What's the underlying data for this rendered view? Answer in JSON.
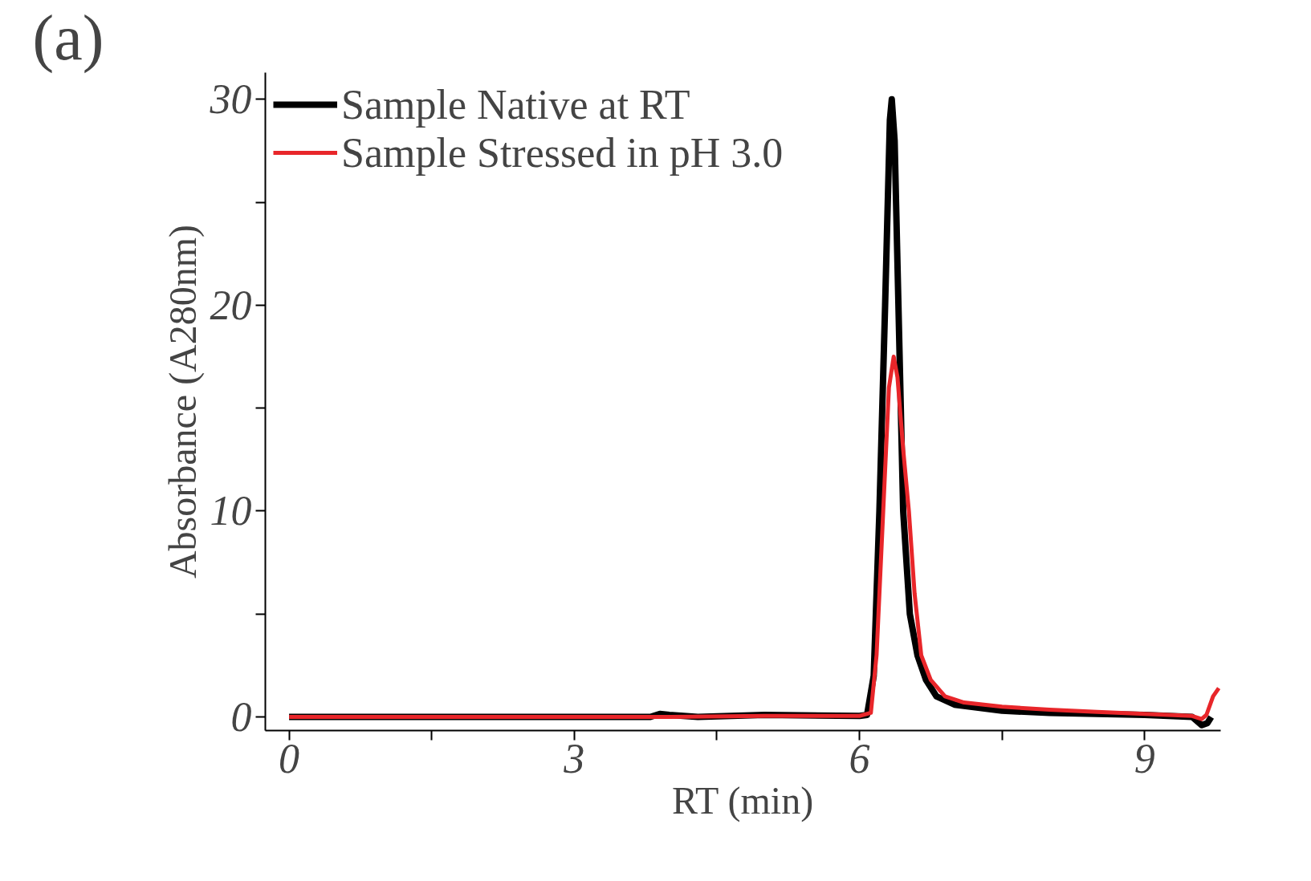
{
  "chart_data": {
    "type": "line",
    "xlabel": "RT (min)",
    "ylabel": "Absorbance (A280nm)",
    "annotations": [
      "(a)"
    ],
    "xlim": [
      -0.25,
      9.8
    ],
    "ylim": [
      -0.66,
      31.3
    ],
    "xticks": [
      0,
      {
        "value": 1.5,
        "label": null
      },
      3,
      {
        "value": 4.5,
        "label": null
      },
      6,
      {
        "value": 7.5,
        "label": null
      },
      9
    ],
    "yticks": [
      0,
      {
        "value": 5,
        "label": null
      },
      10,
      {
        "value": 15,
        "label": null
      },
      20,
      {
        "value": 25,
        "label": null
      },
      30
    ],
    "legend": "top left",
    "grid": false,
    "series": [
      {
        "name": "Sample Native at RT",
        "color": "#000000",
        "x": [
          0.0,
          1,
          2,
          3,
          3.8,
          3.9,
          4.0,
          4.3,
          5,
          6.0,
          6.08,
          6.15,
          6.21,
          6.27,
          6.32,
          6.34,
          6.37,
          6.41,
          6.46,
          6.53,
          6.61,
          6.7,
          6.81,
          7.0,
          7.5,
          8.0,
          8.5,
          9.0,
          9.5,
          9.6,
          9.66,
          9.7
        ],
        "values": [
          0,
          0,
          0,
          0,
          0,
          0.15,
          0.1,
          0,
          0.1,
          0.05,
          0.1,
          2,
          10,
          20,
          29,
          30,
          28,
          20,
          10,
          5,
          3,
          1.8,
          1,
          0.6,
          0.3,
          0.2,
          0.15,
          0.1,
          0.0,
          -0.4,
          -0.3,
          0
        ]
      },
      {
        "name": "Sample Stressed in pH 3.0",
        "color": "#e8262a",
        "x": [
          0.0,
          3,
          4,
          5,
          6.0,
          6.12,
          6.18,
          6.25,
          6.31,
          6.36,
          6.4,
          6.46,
          6.52,
          6.58,
          6.65,
          6.75,
          6.9,
          7.1,
          7.5,
          8,
          8.5,
          9,
          9.5,
          9.6,
          9.65,
          9.72,
          9.78
        ],
        "values": [
          0,
          0,
          0,
          0.05,
          0.05,
          0.2,
          3,
          10,
          16,
          17.5,
          16.5,
          13,
          10,
          6,
          3,
          1.8,
          1,
          0.7,
          0.5,
          0.35,
          0.25,
          0.15,
          0.05,
          -0.1,
          0.1,
          1.0,
          1.4
        ]
      }
    ]
  }
}
